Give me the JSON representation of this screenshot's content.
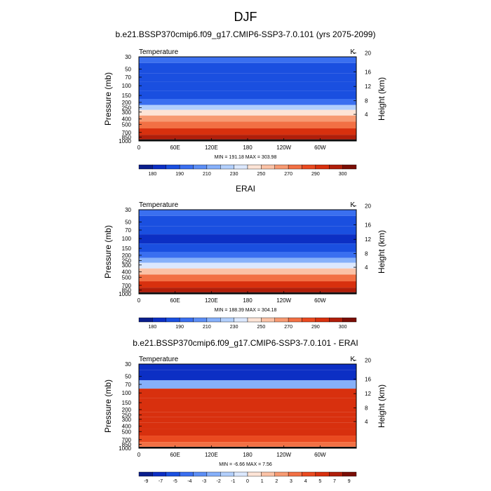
{
  "figure": {
    "title": "DJF"
  },
  "chart_data": [
    {
      "type": "heatmap",
      "panel_title": "b.e21.BSSP370cmip6.f09_g17.CMIP6-SSP3-7.0.101 (yrs 2075-2099)",
      "variable": "Temperature",
      "units": "K",
      "ylabel_left": "Pressure (mb)",
      "ylabel_right": "Height (km)",
      "pressure_ticks": [
        "30",
        "50",
        "70",
        "100",
        "150",
        "200",
        "250",
        "300",
        "400",
        "500",
        "700",
        "850",
        "1000"
      ],
      "height_ticks": [
        "20",
        "16",
        "12",
        "8",
        "4"
      ],
      "longitude_ticks": [
        "0",
        "60E",
        "120E",
        "180",
        "120W",
        "60W"
      ],
      "stats_text": "MIN = 191.18  MAX = 303.98",
      "min": 191.18,
      "max": 303.98,
      "colorbar_labels": [
        "180",
        "190",
        "210",
        "230",
        "250",
        "270",
        "290",
        "300"
      ],
      "colorbar_colors": [
        "#0a1e8c",
        "#0c2fc4",
        "#1a4fe0",
        "#3a6ff0",
        "#5c8ef5",
        "#86b0fa",
        "#b2cffc",
        "#dce8fe",
        "#fde4d6",
        "#fbc2a6",
        "#f79a72",
        "#f27044",
        "#ea4a20",
        "#d8300e",
        "#b01e0a",
        "#7a0e06"
      ],
      "level_by_pressure": [
        [
          30,
          3
        ],
        [
          50,
          2
        ],
        [
          70,
          2
        ],
        [
          100,
          2
        ],
        [
          150,
          2
        ],
        [
          200,
          3
        ],
        [
          250,
          6
        ],
        [
          300,
          8
        ],
        [
          400,
          10
        ],
        [
          500,
          11
        ],
        [
          700,
          13
        ],
        [
          850,
          14
        ],
        [
          1000,
          15
        ]
      ]
    },
    {
      "type": "heatmap",
      "panel_title": "ERAI",
      "variable": "Temperature",
      "units": "K",
      "ylabel_left": "Pressure (mb)",
      "ylabel_right": "Height (km)",
      "pressure_ticks": [
        "30",
        "50",
        "70",
        "100",
        "150",
        "200",
        "250",
        "300",
        "400",
        "500",
        "700",
        "850",
        "1000"
      ],
      "height_ticks": [
        "20",
        "16",
        "12",
        "8",
        "4"
      ],
      "longitude_ticks": [
        "0",
        "60E",
        "120E",
        "180",
        "120W",
        "60W"
      ],
      "stats_text": "MIN = 188.39  MAX = 304.18",
      "min": 188.39,
      "max": 304.18,
      "colorbar_labels": [
        "180",
        "190",
        "210",
        "230",
        "250",
        "270",
        "290",
        "300"
      ],
      "colorbar_colors": [
        "#0a1e8c",
        "#0c2fc4",
        "#1a4fe0",
        "#3a6ff0",
        "#5c8ef5",
        "#86b0fa",
        "#b2cffc",
        "#dce8fe",
        "#fde4d6",
        "#fbc2a6",
        "#f79a72",
        "#f27044",
        "#ea4a20",
        "#d8300e",
        "#b01e0a",
        "#7a0e06"
      ],
      "level_by_pressure": [
        [
          30,
          3
        ],
        [
          50,
          2
        ],
        [
          70,
          2
        ],
        [
          100,
          1
        ],
        [
          150,
          2
        ],
        [
          200,
          3
        ],
        [
          250,
          5
        ],
        [
          300,
          7
        ],
        [
          400,
          9
        ],
        [
          500,
          11
        ],
        [
          700,
          13
        ],
        [
          850,
          14
        ],
        [
          1000,
          15
        ]
      ]
    },
    {
      "type": "heatmap",
      "panel_title": "b.e21.BSSP370cmip6.f09_g17.CMIP6-SSP3-7.0.101 - ERAI",
      "variable": "Temperature",
      "units": "K",
      "ylabel_left": "Pressure (mb)",
      "ylabel_right": "Height (km)",
      "pressure_ticks": [
        "30",
        "50",
        "70",
        "100",
        "150",
        "200",
        "250",
        "300",
        "400",
        "500",
        "700",
        "850",
        "1000"
      ],
      "height_ticks": [
        "20",
        "16",
        "12",
        "8",
        "4"
      ],
      "longitude_ticks": [
        "0",
        "60E",
        "120E",
        "180",
        "120W",
        "60W"
      ],
      "stats_text": "MIN =  -6.66  MAX =   7.56",
      "min": -6.66,
      "max": 7.56,
      "colorbar_labels": [
        "-9",
        "-7",
        "-5",
        "-4",
        "-3",
        "-2",
        "-1",
        "0",
        "1",
        "2",
        "3",
        "4",
        "5",
        "7",
        "9"
      ],
      "colorbar_colors": [
        "#0a1e8c",
        "#0c2fc4",
        "#1a4fe0",
        "#3a6ff0",
        "#5c8ef5",
        "#86b0fa",
        "#b2cffc",
        "#dce8fe",
        "#fde4d6",
        "#fbc2a6",
        "#f79a72",
        "#f27044",
        "#ea4a20",
        "#d8300e",
        "#b01e0a",
        "#7a0e06"
      ],
      "level_by_pressure": [
        [
          30,
          1
        ],
        [
          50,
          1
        ],
        [
          70,
          5
        ],
        [
          100,
          13
        ],
        [
          150,
          13
        ],
        [
          200,
          13
        ],
        [
          250,
          13
        ],
        [
          300,
          13
        ],
        [
          400,
          13
        ],
        [
          500,
          13
        ],
        [
          700,
          12
        ],
        [
          850,
          11
        ],
        [
          1000,
          11
        ]
      ]
    }
  ]
}
